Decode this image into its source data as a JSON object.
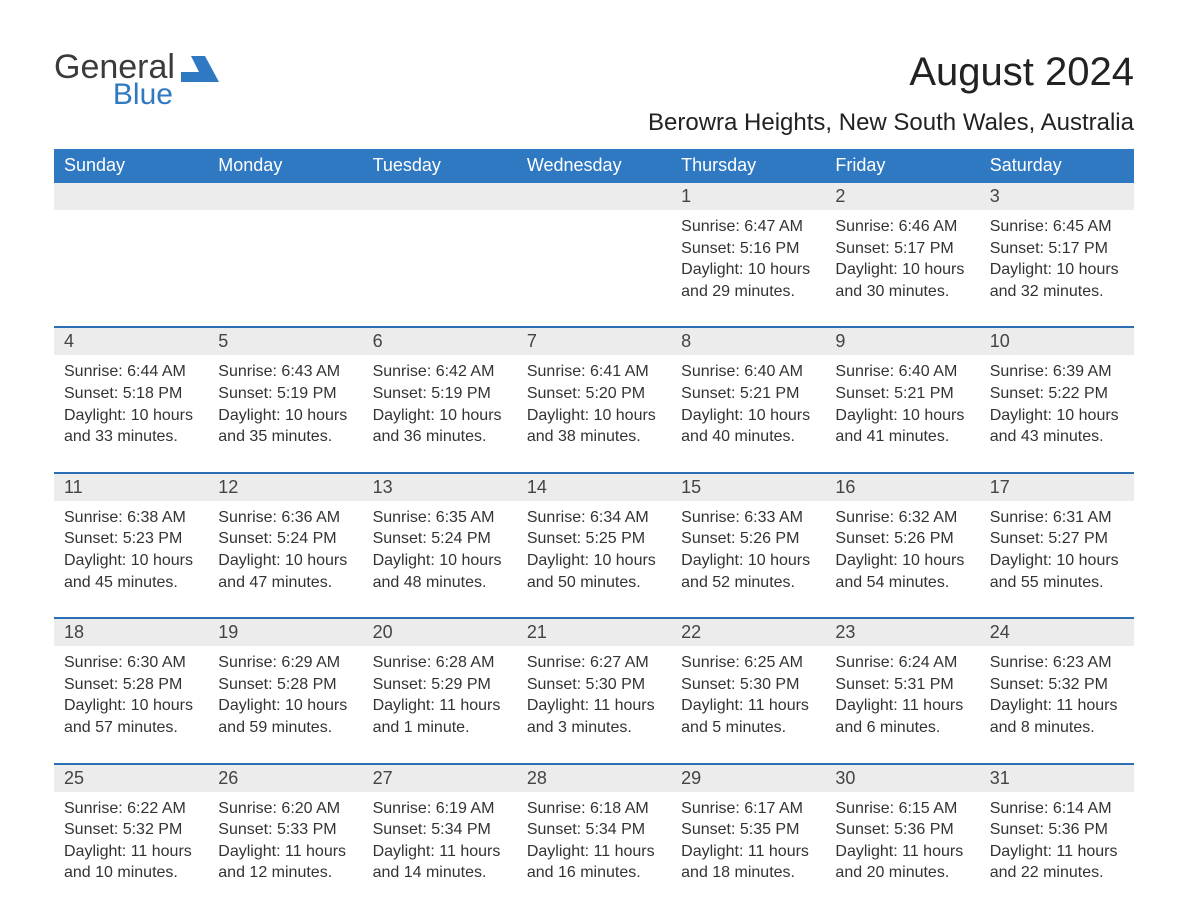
{
  "logo": {
    "general": "General",
    "blue": "Blue"
  },
  "title": "August 2024",
  "location": "Berowra Heights, New South Wales, Australia",
  "colors": {
    "blue": "#2f78c2",
    "grey_row": "#ececec",
    "text": "#333333"
  },
  "weekdays": [
    "Sunday",
    "Monday",
    "Tuesday",
    "Wednesday",
    "Thursday",
    "Friday",
    "Saturday"
  ],
  "weeks": [
    {
      "days": [
        {
          "n": "",
          "sunrise": "",
          "sunset": "",
          "daylight": ""
        },
        {
          "n": "",
          "sunrise": "",
          "sunset": "",
          "daylight": ""
        },
        {
          "n": "",
          "sunrise": "",
          "sunset": "",
          "daylight": ""
        },
        {
          "n": "",
          "sunrise": "",
          "sunset": "",
          "daylight": ""
        },
        {
          "n": "1",
          "sunrise": "Sunrise: 6:47 AM",
          "sunset": "Sunset: 5:16 PM",
          "daylight": "Daylight: 10 hours and 29 minutes."
        },
        {
          "n": "2",
          "sunrise": "Sunrise: 6:46 AM",
          "sunset": "Sunset: 5:17 PM",
          "daylight": "Daylight: 10 hours and 30 minutes."
        },
        {
          "n": "3",
          "sunrise": "Sunrise: 6:45 AM",
          "sunset": "Sunset: 5:17 PM",
          "daylight": "Daylight: 10 hours and 32 minutes."
        }
      ]
    },
    {
      "days": [
        {
          "n": "4",
          "sunrise": "Sunrise: 6:44 AM",
          "sunset": "Sunset: 5:18 PM",
          "daylight": "Daylight: 10 hours and 33 minutes."
        },
        {
          "n": "5",
          "sunrise": "Sunrise: 6:43 AM",
          "sunset": "Sunset: 5:19 PM",
          "daylight": "Daylight: 10 hours and 35 minutes."
        },
        {
          "n": "6",
          "sunrise": "Sunrise: 6:42 AM",
          "sunset": "Sunset: 5:19 PM",
          "daylight": "Daylight: 10 hours and 36 minutes."
        },
        {
          "n": "7",
          "sunrise": "Sunrise: 6:41 AM",
          "sunset": "Sunset: 5:20 PM",
          "daylight": "Daylight: 10 hours and 38 minutes."
        },
        {
          "n": "8",
          "sunrise": "Sunrise: 6:40 AM",
          "sunset": "Sunset: 5:21 PM",
          "daylight": "Daylight: 10 hours and 40 minutes."
        },
        {
          "n": "9",
          "sunrise": "Sunrise: 6:40 AM",
          "sunset": "Sunset: 5:21 PM",
          "daylight": "Daylight: 10 hours and 41 minutes."
        },
        {
          "n": "10",
          "sunrise": "Sunrise: 6:39 AM",
          "sunset": "Sunset: 5:22 PM",
          "daylight": "Daylight: 10 hours and 43 minutes."
        }
      ]
    },
    {
      "days": [
        {
          "n": "11",
          "sunrise": "Sunrise: 6:38 AM",
          "sunset": "Sunset: 5:23 PM",
          "daylight": "Daylight: 10 hours and 45 minutes."
        },
        {
          "n": "12",
          "sunrise": "Sunrise: 6:36 AM",
          "sunset": "Sunset: 5:24 PM",
          "daylight": "Daylight: 10 hours and 47 minutes."
        },
        {
          "n": "13",
          "sunrise": "Sunrise: 6:35 AM",
          "sunset": "Sunset: 5:24 PM",
          "daylight": "Daylight: 10 hours and 48 minutes."
        },
        {
          "n": "14",
          "sunrise": "Sunrise: 6:34 AM",
          "sunset": "Sunset: 5:25 PM",
          "daylight": "Daylight: 10 hours and 50 minutes."
        },
        {
          "n": "15",
          "sunrise": "Sunrise: 6:33 AM",
          "sunset": "Sunset: 5:26 PM",
          "daylight": "Daylight: 10 hours and 52 minutes."
        },
        {
          "n": "16",
          "sunrise": "Sunrise: 6:32 AM",
          "sunset": "Sunset: 5:26 PM",
          "daylight": "Daylight: 10 hours and 54 minutes."
        },
        {
          "n": "17",
          "sunrise": "Sunrise: 6:31 AM",
          "sunset": "Sunset: 5:27 PM",
          "daylight": "Daylight: 10 hours and 55 minutes."
        }
      ]
    },
    {
      "days": [
        {
          "n": "18",
          "sunrise": "Sunrise: 6:30 AM",
          "sunset": "Sunset: 5:28 PM",
          "daylight": "Daylight: 10 hours and 57 minutes."
        },
        {
          "n": "19",
          "sunrise": "Sunrise: 6:29 AM",
          "sunset": "Sunset: 5:28 PM",
          "daylight": "Daylight: 10 hours and 59 minutes."
        },
        {
          "n": "20",
          "sunrise": "Sunrise: 6:28 AM",
          "sunset": "Sunset: 5:29 PM",
          "daylight": "Daylight: 11 hours and 1 minute."
        },
        {
          "n": "21",
          "sunrise": "Sunrise: 6:27 AM",
          "sunset": "Sunset: 5:30 PM",
          "daylight": "Daylight: 11 hours and 3 minutes."
        },
        {
          "n": "22",
          "sunrise": "Sunrise: 6:25 AM",
          "sunset": "Sunset: 5:30 PM",
          "daylight": "Daylight: 11 hours and 5 minutes."
        },
        {
          "n": "23",
          "sunrise": "Sunrise: 6:24 AM",
          "sunset": "Sunset: 5:31 PM",
          "daylight": "Daylight: 11 hours and 6 minutes."
        },
        {
          "n": "24",
          "sunrise": "Sunrise: 6:23 AM",
          "sunset": "Sunset: 5:32 PM",
          "daylight": "Daylight: 11 hours and 8 minutes."
        }
      ]
    },
    {
      "days": [
        {
          "n": "25",
          "sunrise": "Sunrise: 6:22 AM",
          "sunset": "Sunset: 5:32 PM",
          "daylight": "Daylight: 11 hours and 10 minutes."
        },
        {
          "n": "26",
          "sunrise": "Sunrise: 6:20 AM",
          "sunset": "Sunset: 5:33 PM",
          "daylight": "Daylight: 11 hours and 12 minutes."
        },
        {
          "n": "27",
          "sunrise": "Sunrise: 6:19 AM",
          "sunset": "Sunset: 5:34 PM",
          "daylight": "Daylight: 11 hours and 14 minutes."
        },
        {
          "n": "28",
          "sunrise": "Sunrise: 6:18 AM",
          "sunset": "Sunset: 5:34 PM",
          "daylight": "Daylight: 11 hours and 16 minutes."
        },
        {
          "n": "29",
          "sunrise": "Sunrise: 6:17 AM",
          "sunset": "Sunset: 5:35 PM",
          "daylight": "Daylight: 11 hours and 18 minutes."
        },
        {
          "n": "30",
          "sunrise": "Sunrise: 6:15 AM",
          "sunset": "Sunset: 5:36 PM",
          "daylight": "Daylight: 11 hours and 20 minutes."
        },
        {
          "n": "31",
          "sunrise": "Sunrise: 6:14 AM",
          "sunset": "Sunset: 5:36 PM",
          "daylight": "Daylight: 11 hours and 22 minutes."
        }
      ]
    }
  ]
}
